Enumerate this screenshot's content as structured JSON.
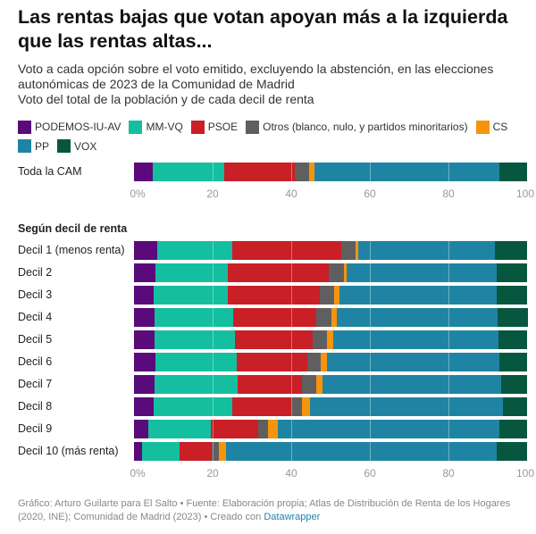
{
  "header": {
    "title": "Las rentas bajas que votan apoyan más a la izquierda que las rentas altas...",
    "subtitle_lines": [
      "Voto a cada opción sobre el voto emitido, excluyendo la abstención, en las elecciones",
      "autonómicas de 2023 de la Comunidad de Madrid",
      "Voto del total de la población y de cada decil de renta"
    ]
  },
  "footer": {
    "text": "Gráfico: Arturo Guilarte para El Salto • Fuente: Elaboración propia; Atlas de Distribución de Renta de los Hogares (2020, INE); Comunidad de Madrid (2023) • Creado con ",
    "link": "Datawrapper"
  },
  "chart_data": {
    "type": "bar",
    "orientation": "horizontal-stacked",
    "title": "Las rentas bajas que votan apoyan más a la izquierda que las rentas altas...",
    "xlabel": "",
    "ylabel": "",
    "xlim": [
      0,
      100
    ],
    "x_ticks": [
      "0%",
      "20",
      "40",
      "60",
      "80",
      "100"
    ],
    "x_tick_values": [
      0,
      20,
      40,
      60,
      80,
      100
    ],
    "grid": true,
    "legend_position": "top",
    "section_label": "Según decil de renta",
    "series": [
      {
        "name": "PODEMOS-IU-AV",
        "color": "#5a0a7a"
      },
      {
        "name": "MM-VQ",
        "color": "#14bfa0"
      },
      {
        "name": "PSOE",
        "color": "#c91f26"
      },
      {
        "name": "Otros (blanco, nulo, y partidos minoritarios)",
        "color": "#5f5f5f"
      },
      {
        "name": "CS",
        "color": "#f7940c"
      },
      {
        "name": "PP",
        "color": "#1f84a3"
      },
      {
        "name": "VOX",
        "color": "#07573f"
      }
    ],
    "total": {
      "category": "Toda la CAM",
      "values": [
        4.8,
        18.2,
        18.0,
        3.6,
        1.4,
        46.9,
        7.1
      ]
    },
    "categories": [
      "Decil 1 (menos renta)",
      "Decil 2",
      "Decil 3",
      "Decil 4",
      "Decil 5",
      "Decil 6",
      "Decil 7",
      "Decil 8",
      "Decil 9",
      "Decil 10 (más renta)"
    ],
    "values": [
      [
        5.8,
        19.1,
        27.8,
        3.7,
        0.6,
        34.8,
        8.2
      ],
      [
        5.4,
        18.5,
        25.6,
        3.9,
        0.8,
        38.0,
        7.8
      ],
      [
        5.1,
        18.7,
        23.4,
        3.8,
        1.3,
        39.9,
        7.8
      ],
      [
        5.3,
        19.9,
        21.2,
        3.8,
        1.3,
        41.0,
        7.5
      ],
      [
        5.3,
        20.4,
        19.8,
        3.7,
        1.5,
        42.1,
        7.2
      ],
      [
        5.4,
        20.8,
        17.9,
        3.4,
        1.5,
        44.0,
        7.0
      ],
      [
        5.3,
        21.0,
        16.5,
        3.5,
        1.7,
        45.4,
        6.6
      ],
      [
        4.9,
        20.0,
        15.1,
        2.7,
        2.1,
        49.0,
        6.2
      ],
      [
        3.6,
        15.9,
        12.2,
        2.5,
        2.4,
        56.4,
        7.0
      ],
      [
        2.0,
        9.5,
        8.3,
        1.8,
        1.9,
        68.8,
        7.7
      ]
    ]
  }
}
